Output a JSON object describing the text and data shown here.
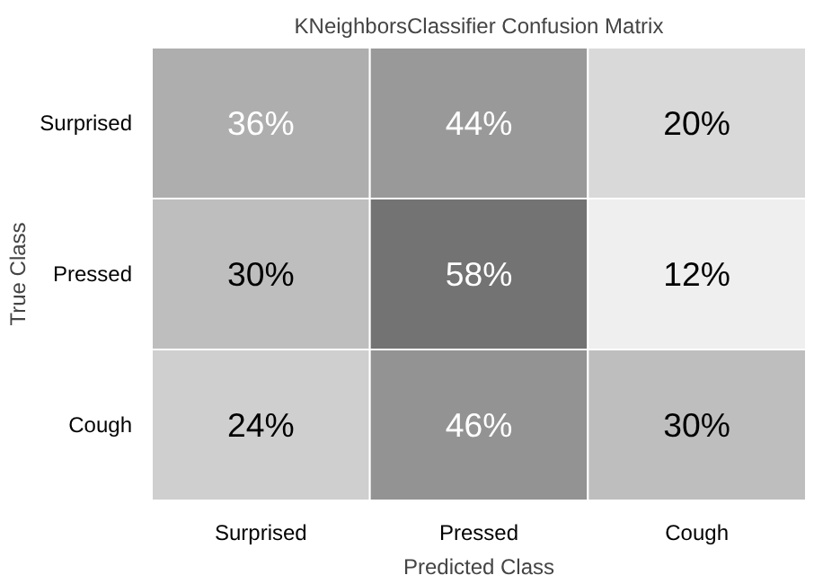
{
  "chart_data": {
    "type": "heatmap",
    "title": "KNeighborsClassifier Confusion Matrix",
    "xlabel": "Predicted Class",
    "ylabel": "True Class",
    "categories": [
      "Surprised",
      "Pressed",
      "Cough"
    ],
    "y_categories": [
      "Surprised",
      "Pressed",
      "Cough"
    ],
    "cells": [
      [
        36,
        44,
        20
      ],
      [
        30,
        58,
        12
      ],
      [
        24,
        46,
        30
      ]
    ],
    "cell_labels": [
      [
        "36%",
        "44%",
        "20%"
      ],
      [
        "30%",
        "58%",
        "12%"
      ],
      [
        "24%",
        "46%",
        "30%"
      ]
    ]
  }
}
